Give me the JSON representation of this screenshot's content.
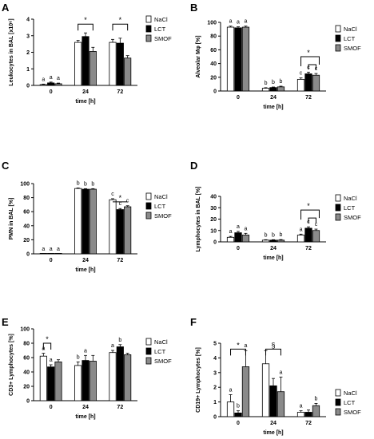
{
  "figure": {
    "groups": [
      "NaCl",
      "LCT",
      "SMOF"
    ],
    "colors": {
      "NaCl": "#ffffff",
      "LCT": "#000000",
      "SMOF": "#8a8a8a"
    }
  },
  "chart_data": [
    {
      "panel": "A",
      "type": "bar",
      "ylabel": "Leukocytes in BAL [x10⁶]",
      "xlabel": "time [h]",
      "ylim": [
        0,
        4
      ],
      "yticks": [
        "0",
        "1",
        "2",
        "3",
        "4"
      ],
      "categories": [
        "0",
        "24",
        "72"
      ],
      "series": [
        {
          "name": "NaCl",
          "values": [
            0.05,
            2.6,
            2.6
          ],
          "errors": [
            0.03,
            0.12,
            0.18
          ]
        },
        {
          "name": "LCT",
          "values": [
            0.15,
            2.95,
            2.55
          ],
          "errors": [
            0.05,
            0.22,
            0.3
          ]
        },
        {
          "name": "SMOF",
          "values": [
            0.1,
            2.05,
            1.65
          ],
          "errors": [
            0.04,
            0.25,
            0.15
          ]
        }
      ],
      "letters": [
        [
          "a",
          "a",
          "a"
        ],
        [
          "",
          "",
          ""
        ],
        [
          "",
          "",
          ""
        ]
      ],
      "sig": [
        {
          "cat": 1,
          "from": 0,
          "to": 2,
          "y": 3.7,
          "label": "*",
          "type": "bracket"
        },
        {
          "cat": 2,
          "from": 0,
          "to": 2,
          "y": 3.7,
          "label": "*",
          "type": "bracket"
        }
      ]
    },
    {
      "panel": "B",
      "type": "bar",
      "ylabel": "Alveolar Mφ [%]",
      "xlabel": "time [h]",
      "ylim": [
        0,
        100
      ],
      "yticks": [
        "0",
        "20",
        "40",
        "60",
        "80",
        "100"
      ],
      "categories": [
        "0",
        "24",
        "72"
      ],
      "series": [
        {
          "name": "NaCl",
          "values": [
            93,
            4,
            17
          ],
          "errors": [
            1.5,
            0.8,
            2
          ]
        },
        {
          "name": "LCT",
          "values": [
            92,
            5,
            25
          ],
          "errors": [
            1.5,
            0.8,
            2.5
          ]
        },
        {
          "name": "SMOF",
          "values": [
            93,
            6,
            23
          ],
          "errors": [
            1.5,
            1,
            2.5
          ]
        }
      ],
      "letters": [
        [
          "a",
          "a",
          "a"
        ],
        [
          "b",
          "b",
          "b"
        ],
        [
          "c",
          "c",
          "c"
        ]
      ],
      "sig": [
        {
          "cat": 2,
          "from": 0,
          "to": 2,
          "y": 50,
          "label": "*",
          "type": "nested"
        }
      ]
    },
    {
      "panel": "C",
      "type": "bar",
      "ylabel": "PMN in BAL [%]",
      "xlabel": "time [h]",
      "ylim": [
        0,
        100
      ],
      "yticks": [
        "0",
        "20",
        "40",
        "60",
        "80",
        "100"
      ],
      "categories": [
        "0",
        "24",
        "72"
      ],
      "series": [
        {
          "name": "NaCl",
          "values": [
            0,
            93,
            77
          ],
          "errors": [
            0,
            0.8,
            1.5
          ]
        },
        {
          "name": "LCT",
          "values": [
            0,
            92,
            63
          ],
          "errors": [
            0,
            0.8,
            1.5
          ]
        },
        {
          "name": "SMOF",
          "values": [
            0,
            92,
            67
          ],
          "errors": [
            0,
            0.8,
            1.5
          ]
        }
      ],
      "letters": [
        [
          "a",
          "a",
          "a"
        ],
        [
          "b",
          "b",
          "b"
        ],
        [
          "c",
          "c",
          "c"
        ]
      ],
      "sig": [
        {
          "cat": 2,
          "from": 0,
          "to": 2,
          "y": 74,
          "label": "*",
          "type": "line"
        }
      ]
    },
    {
      "panel": "D",
      "type": "bar",
      "ylabel": "Lymphocytes in BAL [%]",
      "xlabel": "time [h]",
      "ylim": [
        0,
        40
      ],
      "yticks": [
        "0",
        "10",
        "20",
        "30",
        "40"
      ],
      "categories": [
        "0",
        "24",
        "72"
      ],
      "series": [
        {
          "name": "NaCl",
          "values": [
            4,
            1.5,
            6
          ],
          "errors": [
            0.8,
            0.4,
            0.8
          ]
        },
        {
          "name": "LCT",
          "values": [
            8,
            1.5,
            12
          ],
          "errors": [
            1.2,
            0.4,
            1.2
          ]
        },
        {
          "name": "SMOF",
          "values": [
            6,
            1.5,
            10
          ],
          "errors": [
            1.5,
            0.5,
            1.2
          ]
        }
      ],
      "letters": [
        [
          "a",
          "a",
          "a"
        ],
        [
          "b",
          "b",
          "b"
        ],
        [
          "a",
          "c",
          "c"
        ]
      ],
      "sig": [
        {
          "cat": 2,
          "from": 0,
          "to": 2,
          "y": 28,
          "label": "*",
          "type": "nested"
        }
      ]
    },
    {
      "panel": "E",
      "type": "bar",
      "ylabel": "CD3+ Lymphocytes [%]",
      "xlabel": "time [h]",
      "ylim": [
        0,
        100
      ],
      "yticks": [
        "0",
        "20",
        "40",
        "60",
        "80",
        "100"
      ],
      "categories": [
        "0",
        "24",
        "72"
      ],
      "series": [
        {
          "name": "NaCl",
          "values": [
            62,
            49,
            67
          ],
          "errors": [
            4,
            5,
            3
          ]
        },
        {
          "name": "LCT",
          "values": [
            47,
            56,
            75
          ],
          "errors": [
            3,
            7,
            3
          ]
        },
        {
          "name": "SMOF",
          "values": [
            54,
            55,
            64
          ],
          "errors": [
            3,
            8,
            2
          ]
        }
      ],
      "letters": [
        [
          "a",
          "a",
          ""
        ],
        [
          "b",
          "a",
          ""
        ],
        [
          "a",
          "b",
          ""
        ]
      ],
      "sig": [
        {
          "cat": 0,
          "from": 0,
          "to": 1,
          "y": 80,
          "label": "*",
          "type": "bracket"
        }
      ]
    },
    {
      "panel": "F",
      "type": "bar",
      "ylabel": "CD19+ Lymphocytes [%]",
      "xlabel": "time [h]",
      "ylim": [
        0,
        5
      ],
      "yticks": [
        "0",
        "1",
        "2",
        "3",
        "4",
        "5"
      ],
      "categories": [
        "0",
        "24",
        "72"
      ],
      "series": [
        {
          "name": "NaCl",
          "values": [
            1.0,
            3.6,
            0.3
          ],
          "errors": [
            0.5,
            0.9,
            0.1
          ]
        },
        {
          "name": "LCT",
          "values": [
            0.25,
            2.1,
            0.3
          ],
          "errors": [
            0.15,
            0.5,
            0.15
          ]
        },
        {
          "name": "SMOF",
          "values": [
            3.4,
            1.7,
            0.75
          ],
          "errors": [
            1.1,
            1.0,
            0.15
          ]
        }
      ],
      "letters": [
        [
          "a",
          "b",
          "a"
        ],
        [
          "",
          "",
          "a"
        ],
        [
          "a",
          "",
          "b"
        ]
      ],
      "sig": [
        {
          "cat": 0,
          "from": 0,
          "to": 2,
          "y": 4.6,
          "label": "*",
          "type": "bracket"
        },
        {
          "cat": 1,
          "from": 0,
          "to": 2,
          "y": 4.6,
          "label": "§",
          "type": "bracket"
        }
      ]
    }
  ]
}
